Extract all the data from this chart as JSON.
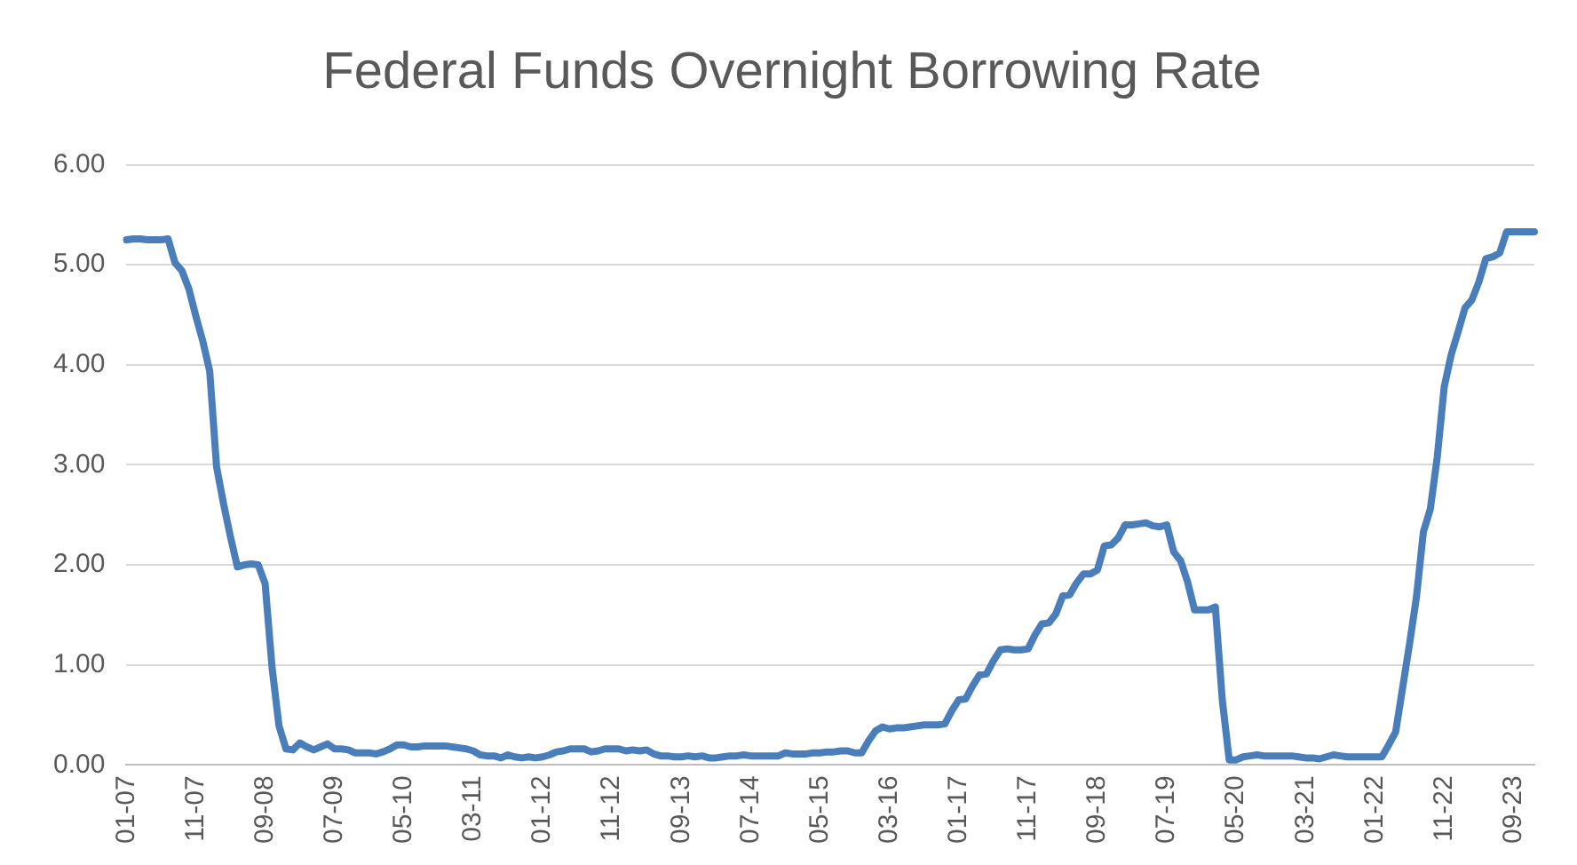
{
  "chart_data": {
    "type": "line",
    "title": "Federal Funds Overnight Borrowing Rate",
    "categories": [
      "01-07",
      null,
      null,
      null,
      null,
      null,
      null,
      null,
      null,
      null,
      "11-07",
      null,
      null,
      null,
      null,
      null,
      null,
      null,
      null,
      null,
      "09-08",
      null,
      null,
      null,
      null,
      null,
      null,
      null,
      null,
      null,
      "07-09",
      null,
      null,
      null,
      null,
      null,
      null,
      null,
      null,
      null,
      "05-10",
      null,
      null,
      null,
      null,
      null,
      null,
      null,
      null,
      null,
      "03-11",
      null,
      null,
      null,
      null,
      null,
      null,
      null,
      null,
      null,
      "01-12",
      null,
      null,
      null,
      null,
      null,
      null,
      null,
      null,
      null,
      "11-12",
      null,
      null,
      null,
      null,
      null,
      null,
      null,
      null,
      null,
      "09-13",
      null,
      null,
      null,
      null,
      null,
      null,
      null,
      null,
      null,
      "07-14",
      null,
      null,
      null,
      null,
      null,
      null,
      null,
      null,
      null,
      "05-15",
      null,
      null,
      null,
      null,
      null,
      null,
      null,
      null,
      null,
      "03-16",
      null,
      null,
      null,
      null,
      null,
      null,
      null,
      null,
      null,
      "01-17",
      null,
      null,
      null,
      null,
      null,
      null,
      null,
      null,
      null,
      "11-17",
      null,
      null,
      null,
      null,
      null,
      null,
      null,
      null,
      null,
      "09-18",
      null,
      null,
      null,
      null,
      null,
      null,
      null,
      null,
      null,
      "07-19",
      null,
      null,
      null,
      null,
      null,
      null,
      null,
      null,
      null,
      "05-20",
      null,
      null,
      null,
      null,
      null,
      null,
      null,
      null,
      null,
      "03-21",
      null,
      null,
      null,
      null,
      null,
      null,
      null,
      null,
      null,
      "01-22",
      null,
      null,
      null,
      null,
      null,
      null,
      null,
      null,
      null,
      "11-22",
      null,
      null,
      null,
      null,
      null,
      null,
      null,
      null,
      null,
      "09-23",
      null,
      null,
      null
    ],
    "series": [
      {
        "color": "#4a7ebb",
        "values": [
          5.25,
          5.26,
          5.26,
          5.25,
          5.25,
          5.25,
          5.26,
          5.02,
          4.94,
          4.76,
          4.49,
          4.24,
          3.94,
          2.98,
          2.61,
          2.28,
          1.98,
          2.0,
          2.01,
          2.0,
          1.81,
          0.97,
          0.39,
          0.16,
          0.15,
          0.22,
          0.18,
          0.15,
          0.18,
          0.21,
          0.16,
          0.16,
          0.15,
          0.12,
          0.12,
          0.12,
          0.11,
          0.13,
          0.16,
          0.2,
          0.2,
          0.18,
          0.18,
          0.19,
          0.19,
          0.19,
          0.19,
          0.18,
          0.17,
          0.16,
          0.14,
          0.1,
          0.09,
          0.09,
          0.07,
          0.1,
          0.08,
          0.07,
          0.08,
          0.07,
          0.08,
          0.1,
          0.13,
          0.14,
          0.16,
          0.16,
          0.16,
          0.13,
          0.14,
          0.16,
          0.16,
          0.16,
          0.14,
          0.15,
          0.14,
          0.15,
          0.11,
          0.09,
          0.09,
          0.08,
          0.08,
          0.09,
          0.08,
          0.09,
          0.07,
          0.07,
          0.08,
          0.09,
          0.09,
          0.1,
          0.09,
          0.09,
          0.09,
          0.09,
          0.09,
          0.12,
          0.11,
          0.11,
          0.11,
          0.12,
          0.12,
          0.13,
          0.13,
          0.14,
          0.14,
          0.12,
          0.12,
          0.24,
          0.34,
          0.38,
          0.36,
          0.37,
          0.37,
          0.38,
          0.39,
          0.4,
          0.4,
          0.4,
          0.41,
          0.54,
          0.65,
          0.66,
          0.79,
          0.9,
          0.91,
          1.04,
          1.15,
          1.16,
          1.15,
          1.15,
          1.16,
          1.3,
          1.41,
          1.42,
          1.51,
          1.69,
          1.7,
          1.82,
          1.91,
          1.91,
          1.95,
          2.19,
          2.2,
          2.27,
          2.4,
          2.4,
          2.41,
          2.42,
          2.39,
          2.38,
          2.4,
          2.13,
          2.04,
          1.83,
          1.55,
          1.55,
          1.55,
          1.58,
          0.65,
          0.05,
          0.05,
          0.08,
          0.09,
          0.1,
          0.09,
          0.09,
          0.09,
          0.09,
          0.09,
          0.08,
          0.07,
          0.07,
          0.06,
          0.08,
          0.1,
          0.09,
          0.08,
          0.08,
          0.08,
          0.08,
          0.08,
          0.08,
          0.2,
          0.33,
          0.77,
          1.21,
          1.68,
          2.33,
          2.56,
          3.08,
          3.78,
          4.1,
          4.33,
          4.57,
          4.65,
          4.83,
          5.06,
          5.08,
          5.12,
          5.33,
          5.33,
          5.33,
          5.33,
          5.33
        ]
      }
    ],
    "ylim": [
      0,
      6
    ],
    "yticks": [
      {
        "value": 0,
        "label": "0.00"
      },
      {
        "value": 1,
        "label": "1.00"
      },
      {
        "value": 2,
        "label": "2.00"
      },
      {
        "value": 3,
        "label": "3.00"
      },
      {
        "value": 4,
        "label": "4.00"
      },
      {
        "value": 5,
        "label": "5.00"
      },
      {
        "value": 6,
        "label": "6.00"
      }
    ],
    "grid": "y",
    "legend": false,
    "marker": "none",
    "line_style": "solid"
  }
}
